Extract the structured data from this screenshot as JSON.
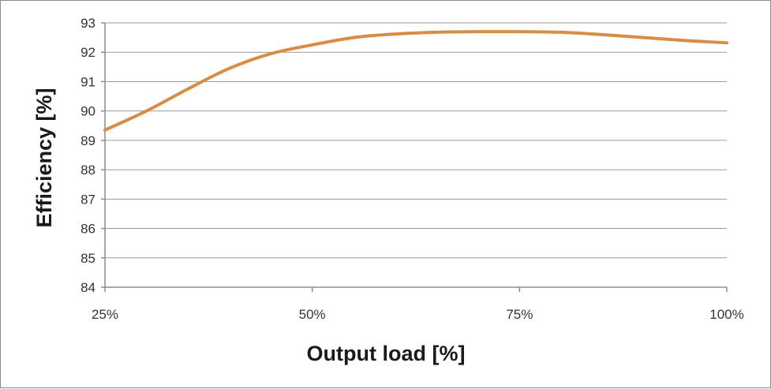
{
  "chart_data": {
    "type": "line",
    "title": "",
    "xlabel": "Output load [%]",
    "ylabel": "Efficiency [%]",
    "categories": [
      "25%",
      "50%",
      "75%",
      "100%"
    ],
    "x": [
      25,
      30,
      35,
      40,
      45,
      50,
      55,
      60,
      65,
      70,
      75,
      80,
      85,
      90,
      95,
      100
    ],
    "xlim": [
      25,
      100
    ],
    "ylim": [
      84,
      93
    ],
    "yticks": [
      "84",
      "85",
      "86",
      "87",
      "88",
      "89",
      "90",
      "91",
      "92",
      "93"
    ],
    "grid": true,
    "legend": "none",
    "series": [
      {
        "name": "Efficiency",
        "color": "#d98c45",
        "values": [
          89.35,
          90.0,
          90.75,
          91.45,
          91.95,
          92.25,
          92.5,
          92.62,
          92.68,
          92.7,
          92.7,
          92.68,
          92.6,
          92.5,
          92.4,
          92.32
        ]
      }
    ]
  }
}
